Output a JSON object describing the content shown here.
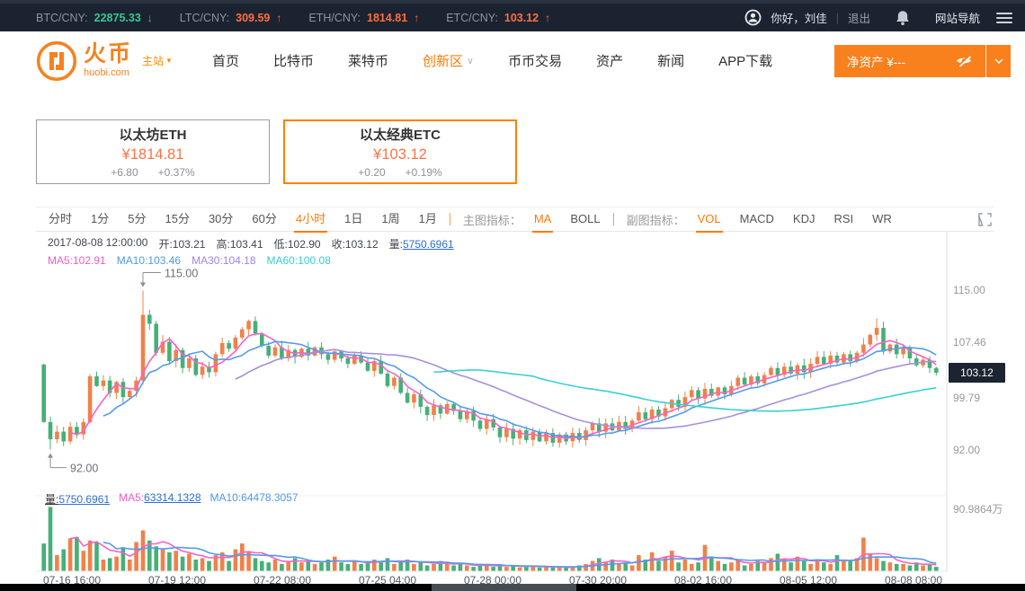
{
  "ticker_bar": {
    "items": [
      {
        "pair": "BTC/CNY",
        "value": "22875.33",
        "direction": "down",
        "color": "#33c894"
      },
      {
        "pair": "LTC/CNY",
        "value": "309.59",
        "direction": "up",
        "color": "#ff6f40"
      },
      {
        "pair": "ETH/CNY",
        "value": "1814.81",
        "direction": "up",
        "color": "#ff6f40"
      },
      {
        "pair": "ETC/CNY",
        "value": "103.12",
        "direction": "up",
        "color": "#ff6f40"
      }
    ],
    "greeting": "你好，刘佳",
    "separator": "|",
    "logout": "退出",
    "site_nav": "网站导航"
  },
  "nav": {
    "brand": "火币",
    "brand_domain": "huobi.com",
    "brand_badge": "主站",
    "items": [
      "首页",
      "比特币",
      "莱特币",
      "创新区",
      "币币交易",
      "资产",
      "新闻",
      "APP下载"
    ],
    "active_item": "创新区",
    "asset_button": "净资产 ¥---"
  },
  "cards": [
    {
      "title": "以太坊ETH",
      "price": "¥1814.81",
      "change": "+6.80",
      "change_pct": "+0.37%",
      "selected": false
    },
    {
      "title": "以太经典ETC",
      "price": "¥103.12",
      "change": "+0.20",
      "change_pct": "+0.19%",
      "selected": true
    }
  ],
  "toolbar": {
    "intervals": [
      "分时",
      "1分",
      "5分",
      "15分",
      "30分",
      "60分",
      "4小时",
      "1日",
      "1周",
      "1月"
    ],
    "active_interval": "4小时",
    "main_indicator_label": "主图指标：",
    "main_indicators": [
      "MA",
      "BOLL"
    ],
    "active_main": "MA",
    "sub_indicator_label": "副图指标：",
    "sub_indicators": [
      "VOL",
      "MACD",
      "KDJ",
      "RSI",
      "WR"
    ],
    "active_sub": "VOL"
  },
  "chart_info": {
    "datetime": "2017-08-08 12:00:00",
    "open": "开:103.21",
    "high": "高:103.41",
    "low": "低:102.90",
    "close": "收:103.12",
    "volume_label": "量:",
    "volume_value": "5750.6961",
    "mas": [
      {
        "text": "MA5:102.91",
        "color": "#f25dc3"
      },
      {
        "text": "MA10:103.46",
        "color": "#4f9ae8"
      },
      {
        "text": "MA30:104.18",
        "color": "#9f86dd"
      },
      {
        "text": "MA60:100.08",
        "color": "#36cfd3"
      }
    ],
    "vol_pane": {
      "volume_label": "量:",
      "volume_value": "5750.6961",
      "ma5_label": "MA5:",
      "ma5_value": "63314.1328",
      "ma10_text": "MA10:64478.3057"
    }
  },
  "chart_data": {
    "type": "candlestick+volume",
    "symbol": "ETC/CNY",
    "interval": "4小时",
    "y_ticks": [
      "115.00",
      "107.46",
      "99.79",
      "92.00"
    ],
    "current_price": "103.12",
    "volume_axis_max_label": "90.9864万",
    "volume_axis_max_value": 90.9864,
    "x_labels": [
      "07-16 16:00",
      "07-19 12:00",
      "07-22 08:00",
      "07-25 04:00",
      "07-28 00:00",
      "07-30 20:00",
      "08-02 16:00",
      "08-05 12:00",
      "08-08 08:00"
    ],
    "annotations": [
      {
        "at": 15,
        "price": 115.0,
        "text": "115.00",
        "dir": "high"
      },
      {
        "at": 1,
        "price": 92.0,
        "text": "92.00",
        "dir": "low"
      }
    ],
    "up_color": "#f0814a",
    "down_color": "#45b077",
    "ma_colors": {
      "ma5": "#fb61c6",
      "ma10": "#559be8",
      "ma30": "#a78fdb",
      "ma60": "#38d0d5"
    },
    "open0": 104.3,
    "wick_overrides": {
      "1": {
        "low": 92.0
      },
      "15": {
        "high": 115.0
      },
      "126": {
        "high": 111.0
      }
    },
    "closes": [
      96.0,
      93.5,
      94.6,
      93.2,
      95.3,
      94.2,
      96.0,
      102.6,
      101.2,
      102.0,
      100.2,
      101.8,
      99.6,
      100.5,
      102.0,
      111.5,
      110.2,
      106.0,
      107.6,
      104.8,
      106.4,
      103.8,
      105.2,
      102.8,
      104.0,
      103.2,
      105.8,
      107.4,
      106.6,
      108.2,
      109.4,
      110.6,
      108.8,
      107.0,
      105.6,
      106.8,
      105.2,
      106.4,
      105.4,
      106.6,
      105.6,
      106.8,
      105.8,
      105.0,
      106.2,
      105.2,
      104.4,
      105.6,
      104.6,
      103.4,
      104.8,
      103.0,
      101.2,
      102.4,
      100.2,
      98.8,
      100.0,
      98.2,
      97.0,
      98.4,
      97.2,
      98.6,
      97.6,
      96.4,
      97.6,
      96.2,
      95.0,
      96.4,
      95.2,
      93.8,
      95.0,
      93.6,
      94.8,
      93.4,
      94.6,
      93.2,
      94.4,
      93.0,
      94.2,
      93.2,
      94.4,
      93.4,
      94.8,
      95.8,
      94.6,
      95.8,
      94.8,
      96.0,
      95.0,
      96.2,
      97.4,
      96.4,
      97.8,
      96.8,
      98.0,
      99.2,
      98.2,
      99.6,
      100.6,
      99.4,
      100.8,
      99.8,
      101.0,
      100.0,
      101.2,
      102.4,
      101.4,
      102.6,
      101.6,
      102.8,
      103.8,
      102.8,
      104.0,
      103.0,
      104.2,
      103.2,
      104.4,
      105.4,
      104.4,
      105.6,
      104.6,
      105.8,
      104.8,
      106.0,
      107.2,
      108.6,
      109.6,
      106.2,
      107.2,
      105.8,
      106.8,
      105.2,
      104.2,
      105.0,
      103.8,
      103.12
    ],
    "volumes": [
      38,
      88,
      22,
      30,
      45,
      47,
      28,
      42,
      40,
      16,
      18,
      20,
      33,
      16,
      40,
      56,
      42,
      34,
      30,
      26,
      28,
      20,
      24,
      16,
      18,
      14,
      22,
      26,
      14,
      30,
      38,
      26,
      18,
      14,
      12,
      16,
      10,
      14,
      18,
      12,
      14,
      10,
      12,
      16,
      20,
      12,
      10,
      14,
      10,
      12,
      16,
      12,
      18,
      10,
      14,
      16,
      10,
      12,
      8,
      10,
      14,
      10,
      8,
      10,
      8,
      6,
      8,
      10,
      6,
      8,
      6,
      8,
      5,
      6,
      8,
      5,
      6,
      5,
      6,
      5,
      6,
      8,
      10,
      14,
      18,
      12,
      16,
      10,
      12,
      8,
      22,
      16,
      26,
      14,
      20,
      28,
      12,
      16,
      10,
      12,
      36,
      20,
      14,
      10,
      12,
      16,
      8,
      10,
      14,
      12,
      18,
      24,
      16,
      12,
      20,
      14,
      10,
      16,
      12,
      10,
      22,
      16,
      14,
      18,
      46,
      24,
      18,
      14,
      12,
      10,
      10,
      8,
      12,
      8,
      10,
      6
    ]
  }
}
